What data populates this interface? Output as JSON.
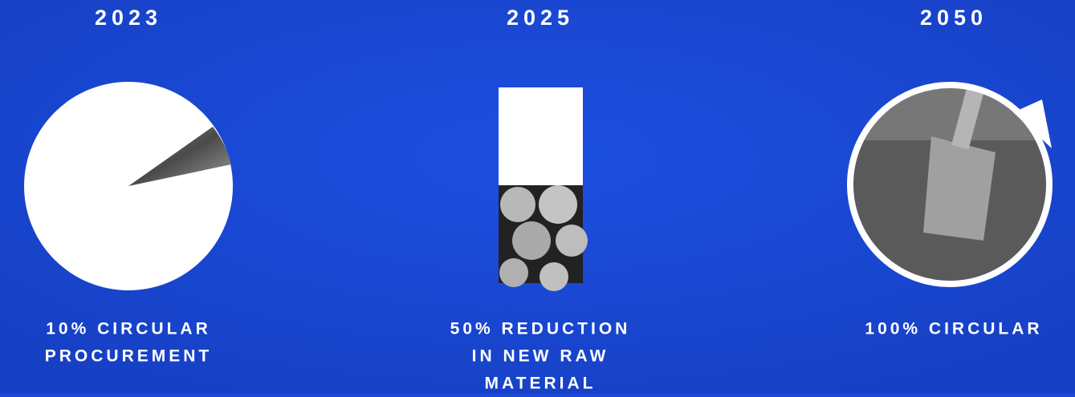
{
  "items": [
    {
      "year": "2023",
      "caption": [
        "10% CIRCULAR",
        "PROCUREMENT"
      ]
    },
    {
      "year": "2025",
      "caption": [
        "50% REDUCTION",
        "IN NEW RAW",
        "MATERIAL"
      ]
    },
    {
      "year": "2050",
      "caption": [
        "100% CIRCULAR"
      ]
    }
  ]
}
